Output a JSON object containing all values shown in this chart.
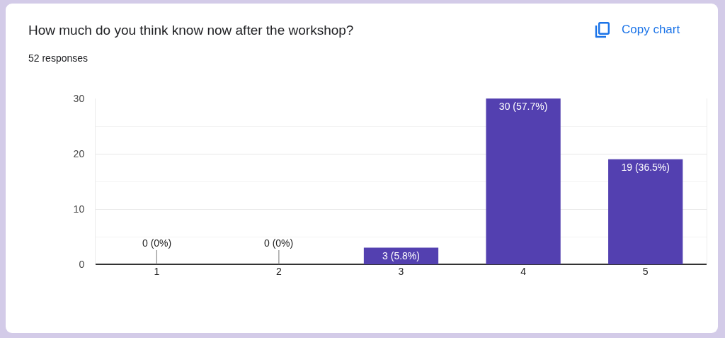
{
  "chart_data": {
    "type": "bar",
    "title": "How much do you think know now after the workshop?",
    "subtitle": "52 responses",
    "annotations": [
      "Copy chart"
    ],
    "categories": [
      "1",
      "2",
      "3",
      "4",
      "5"
    ],
    "values": [
      0,
      0,
      3,
      30,
      19
    ],
    "color": "#5340b0",
    "value_labels": [
      "0 (0%)",
      "0 (0%)",
      "3 (5.8%)",
      "30 (57.7%)",
      "19 (36.5%)"
    ],
    "ylim": [
      0,
      30
    ],
    "yticks": [
      0,
      {
        "value": 5,
        "label": null
      },
      10,
      {
        "value": 15,
        "label": null
      },
      20,
      {
        "value": 25,
        "label": null
      },
      30
    ],
    "grid": "y"
  }
}
